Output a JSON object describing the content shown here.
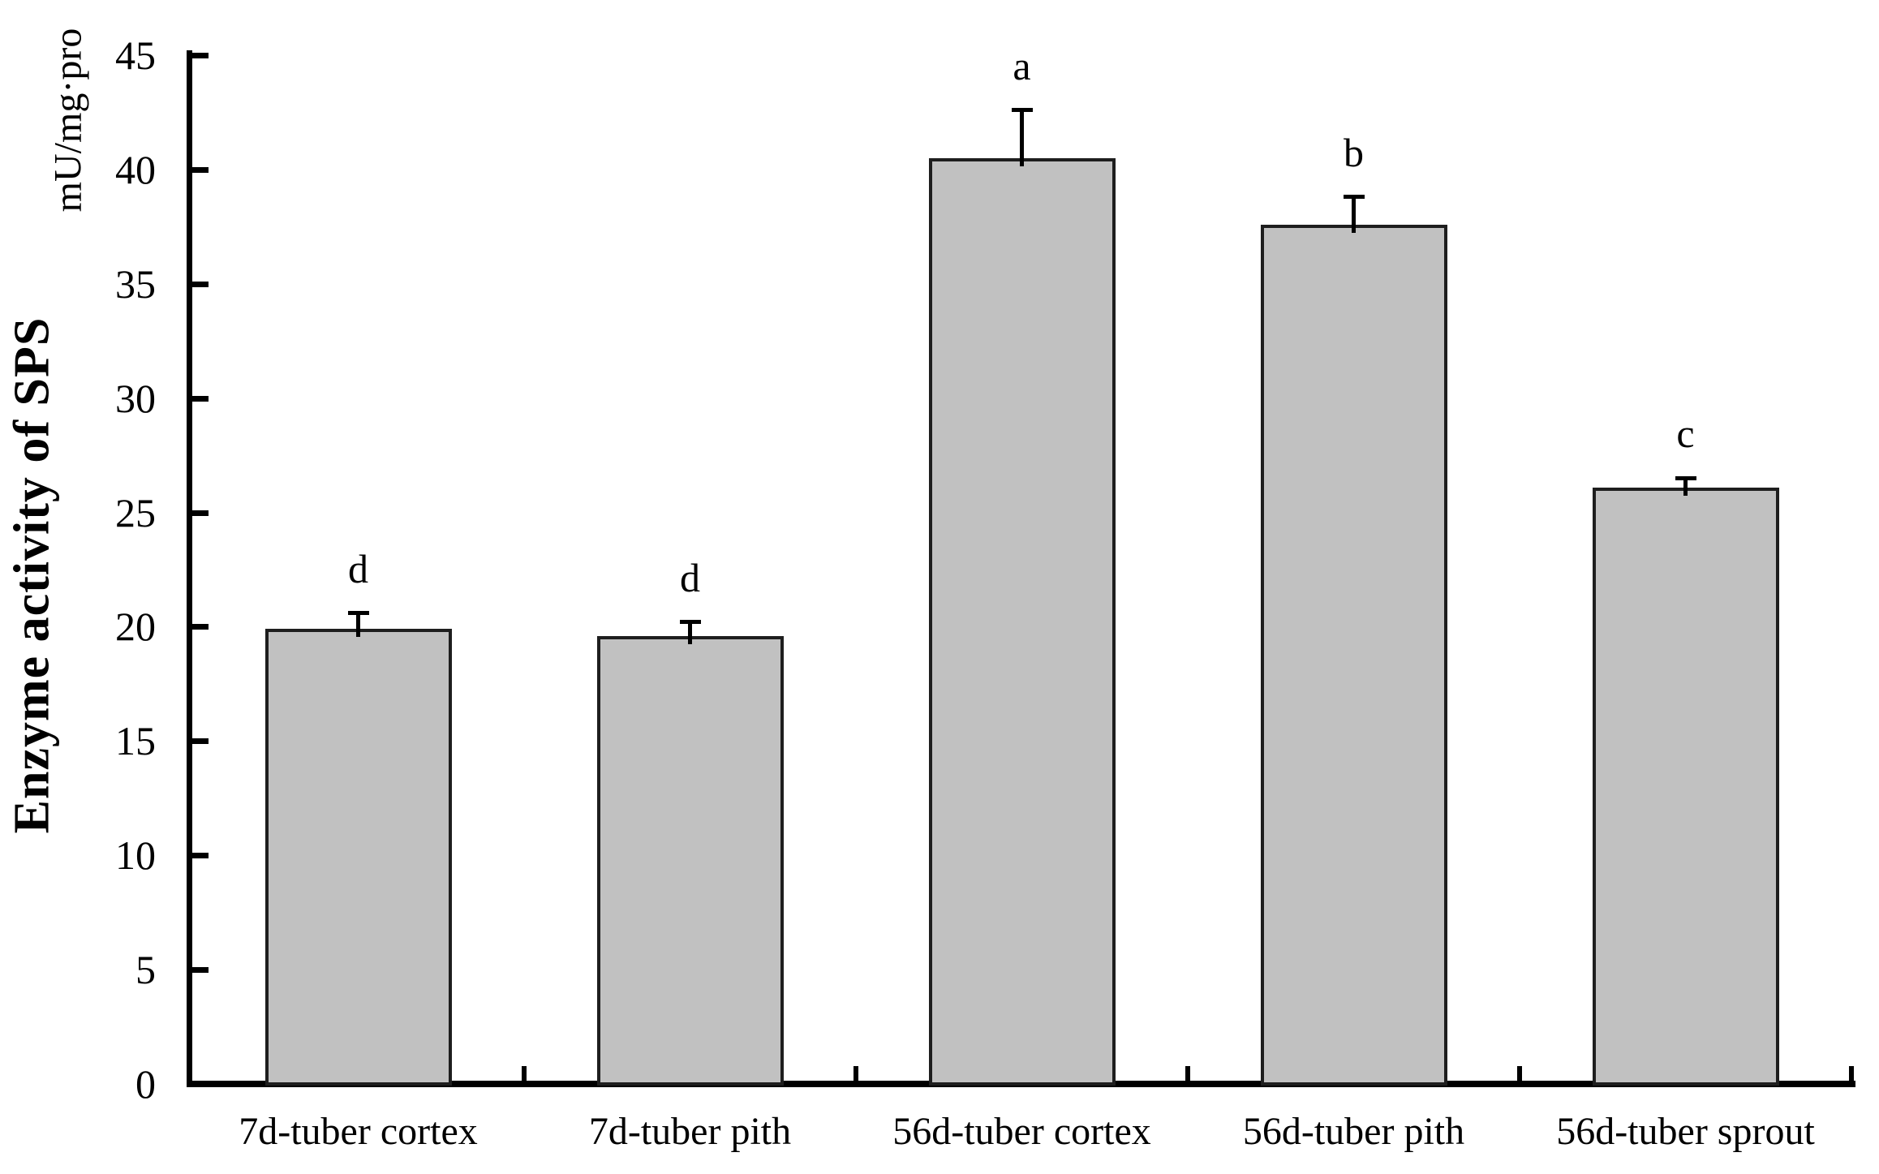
{
  "chart_data": {
    "type": "bar",
    "title": "",
    "ylabel": "Enzyme activity of SPS",
    "y_unit_label": "mU/mg·pro",
    "xlabel": "",
    "categories": [
      "7d-tuber cortex",
      "7d-tuber pith",
      "56d-tuber cortex",
      "56d-tuber pith",
      "56d-tuber sprout"
    ],
    "series": [
      {
        "name": "Enzyme activity of SPS",
        "values": [
          19.9,
          19.6,
          40.5,
          37.6,
          26.1
        ],
        "errors": [
          0.7,
          0.6,
          2.1,
          1.2,
          0.4
        ],
        "sig_letters": [
          "d",
          "d",
          "a",
          "b",
          "c"
        ]
      }
    ],
    "ylim": [
      0,
      45
    ],
    "yticks": [
      0,
      5,
      10,
      15,
      20,
      25,
      30,
      35,
      40,
      45
    ],
    "grid": "off",
    "legend": "none",
    "error_bars": "upper only, T-cap",
    "colors": {
      "bar_fill": "#c1c1c1",
      "bar_border": "#1e1e1e",
      "axis": "#000000",
      "text": "#000000",
      "background": "#ffffff"
    }
  }
}
